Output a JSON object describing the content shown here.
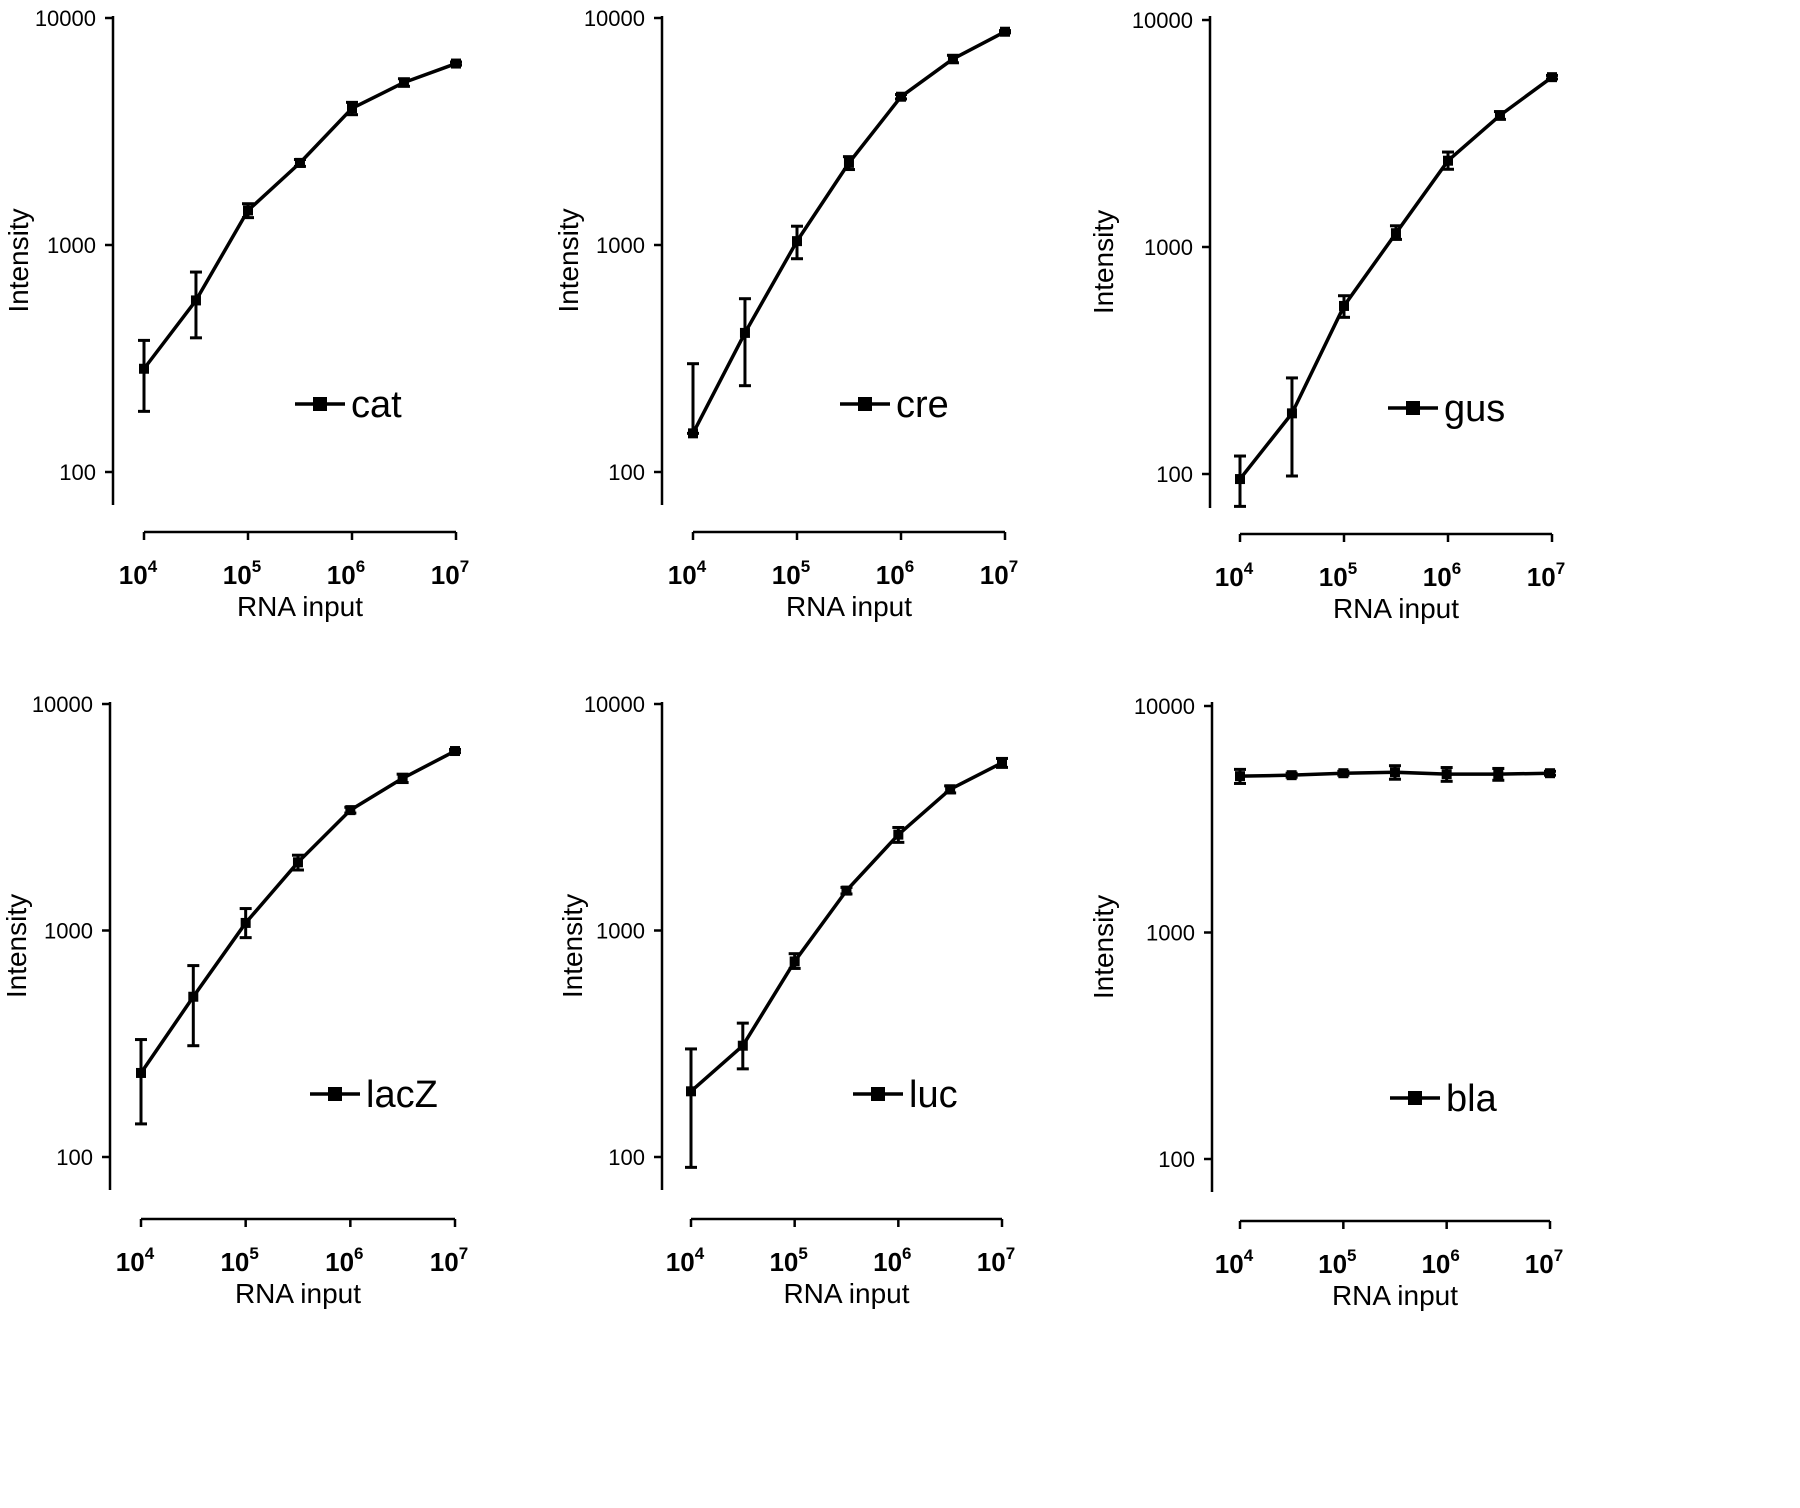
{
  "chart_data": [
    {
      "type": "line",
      "xlabel": "RNA input",
      "ylabel": "Intensity",
      "xscale": "log",
      "yscale": "log",
      "xticks": [
        "10",
        "10",
        "10",
        "10"
      ],
      "xtick_exponents": [
        "4",
        "5",
        "6",
        "7"
      ],
      "xtick_values": [
        10000,
        100000,
        1000000,
        10000000
      ],
      "yticks": [
        "100",
        "1000",
        "10000"
      ],
      "ytick_values": [
        100,
        1000,
        10000
      ],
      "legend": "right-center",
      "grid": false,
      "x": [
        10000,
        31600,
        100000,
        316000,
        1000000,
        3160000,
        10000000
      ],
      "series": [
        {
          "name": "cat",
          "values": [
            285,
            570,
            1420,
            2300,
            4000,
            5200,
            6300
          ],
          "errors": [
            [
              185,
              380
            ],
            [
              390,
              760
            ],
            [
              1320,
              1520
            ],
            [
              2220,
              2380
            ],
            [
              3750,
              4250
            ],
            [
              5000,
              5400
            ],
            [
              6200,
              6400
            ]
          ]
        }
      ]
    },
    {
      "type": "line",
      "xlabel": "RNA input",
      "ylabel": "Intensity",
      "xscale": "log",
      "yscale": "log",
      "xticks": [
        "10",
        "10",
        "10",
        "10"
      ],
      "xtick_exponents": [
        "4",
        "5",
        "6",
        "7"
      ],
      "xtick_values": [
        10000,
        100000,
        1000000,
        10000000
      ],
      "yticks": [
        "100",
        "1000",
        "10000"
      ],
      "ytick_values": [
        100,
        1000,
        10000
      ],
      "legend": "right-center",
      "grid": false,
      "x": [
        10000,
        31600,
        100000,
        316000,
        1000000,
        3160000,
        10000000
      ],
      "series": [
        {
          "name": "cre",
          "values": [
            148,
            410,
            1040,
            2300,
            4500,
            6600,
            8700
          ],
          "errors": [
            [
              148,
              300
            ],
            [
              240,
              580
            ],
            [
              870,
              1210
            ],
            [
              2150,
              2450
            ],
            [
              4400,
              4600
            ],
            [
              6350,
              6850
            ],
            [
              8600,
              8800
            ]
          ]
        }
      ]
    },
    {
      "type": "line",
      "xlabel": "RNA input",
      "ylabel": "Intensity",
      "xscale": "log",
      "yscale": "log",
      "xticks": [
        "10",
        "10",
        "10",
        "10"
      ],
      "xtick_exponents": [
        "4",
        "5",
        "6",
        "7"
      ],
      "xtick_values": [
        10000,
        100000,
        1000000,
        10000000
      ],
      "yticks": [
        "100",
        "1000",
        "10000"
      ],
      "ytick_values": [
        100,
        1000,
        10000
      ],
      "legend": "right-center",
      "grid": false,
      "x": [
        10000,
        31600,
        100000,
        316000,
        1000000,
        3160000,
        10000000
      ],
      "series": [
        {
          "name": "gus",
          "values": [
            95,
            185,
            550,
            1150,
            2400,
            3800,
            5600
          ],
          "errors": [
            [
              72,
              120
            ],
            [
              98,
              265
            ],
            [
              490,
              610
            ],
            [
              1080,
              1240
            ],
            [
              2200,
              2620
            ],
            [
              3650,
              3950
            ],
            [
              5500,
              5700
            ]
          ]
        }
      ]
    },
    {
      "type": "line",
      "xlabel": "RNA input",
      "ylabel": "Intensity",
      "xscale": "log",
      "yscale": "log",
      "xticks": [
        "10",
        "10",
        "10",
        "10"
      ],
      "xtick_exponents": [
        "4",
        "5",
        "6",
        "7"
      ],
      "xtick_values": [
        10000,
        100000,
        1000000,
        10000000
      ],
      "yticks": [
        "100",
        "1000",
        "10000"
      ],
      "ytick_values": [
        100,
        1000,
        10000
      ],
      "legend": "right-center",
      "grid": false,
      "x": [
        10000,
        31600,
        100000,
        316000,
        1000000,
        3160000,
        10000000
      ],
      "series": [
        {
          "name": "lacZ",
          "values": [
            235,
            510,
            1080,
            2000,
            3400,
            4700,
            6200
          ],
          "errors": [
            [
              140,
              330
            ],
            [
              310,
              700
            ],
            [
              930,
              1250
            ],
            [
              1850,
              2150
            ],
            [
              3300,
              3500
            ],
            [
              4500,
              4900
            ],
            [
              6100,
              6300
            ]
          ]
        }
      ]
    },
    {
      "type": "line",
      "xlabel": "RNA input",
      "ylabel": "Intensity",
      "xscale": "log",
      "yscale": "log",
      "xticks": [
        "10",
        "10",
        "10",
        "10"
      ],
      "xtick_exponents": [
        "4",
        "5",
        "6",
        "7"
      ],
      "xtick_values": [
        10000,
        100000,
        1000000,
        10000000
      ],
      "yticks": [
        "100",
        "1000",
        "10000"
      ],
      "ytick_values": [
        100,
        1000,
        10000
      ],
      "legend": "right-center",
      "grid": false,
      "x": [
        10000,
        31600,
        100000,
        316000,
        1000000,
        3160000,
        10000000
      ],
      "series": [
        {
          "name": "luc",
          "values": [
            195,
            310,
            730,
            1500,
            2650,
            4200,
            5500
          ],
          "errors": [
            [
              90,
              300
            ],
            [
              245,
              390
            ],
            [
              680,
              790
            ],
            [
              1450,
              1550
            ],
            [
              2450,
              2850
            ],
            [
              4050,
              4350
            ],
            [
              5250,
              5750
            ]
          ]
        }
      ]
    },
    {
      "type": "line",
      "xlabel": "RNA input",
      "ylabel": "Intensity",
      "xscale": "log",
      "yscale": "log",
      "xticks": [
        "10",
        "10",
        "10",
        "10"
      ],
      "xtick_exponents": [
        "4",
        "5",
        "6",
        "7"
      ],
      "xtick_values": [
        10000,
        100000,
        1000000,
        10000000
      ],
      "yticks": [
        "100",
        "1000",
        "10000"
      ],
      "ytick_values": [
        100,
        1000,
        10000
      ],
      "legend": "right-center",
      "grid": false,
      "x": [
        10000,
        31600,
        100000,
        316000,
        1000000,
        3160000,
        10000000
      ],
      "series": [
        {
          "name": "bla",
          "values": [
            4900,
            4950,
            5050,
            5100,
            5000,
            5000,
            5050
          ],
          "errors": [
            [
              4550,
              5250
            ],
            [
              4850,
              5050
            ],
            [
              4950,
              5150
            ],
            [
              4750,
              5450
            ],
            [
              4650,
              5350
            ],
            [
              4700,
              5300
            ],
            [
              4950,
              5150
            ]
          ]
        }
      ]
    }
  ]
}
